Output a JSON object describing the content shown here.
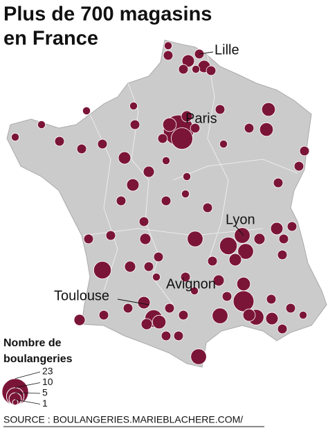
{
  "title": [
    "Plus de 700 magasins",
    "en France"
  ],
  "cities": [
    "Lille",
    "Paris",
    "Lyon",
    "Avignon",
    "Toulouse"
  ],
  "legend": {
    "title": [
      "Nombre de",
      "boulangeries"
    ],
    "values": [
      23,
      10,
      5,
      1
    ]
  },
  "bubbles": [
    3,
    5,
    5,
    3,
    2,
    2,
    3,
    3,
    30,
    15,
    6,
    4,
    3,
    3,
    6,
    6,
    3,
    3,
    2,
    3,
    3,
    3,
    5,
    5,
    3,
    3,
    3,
    2,
    2,
    2,
    2,
    3,
    4,
    2,
    2,
    3,
    2,
    3,
    3,
    4,
    3,
    3,
    3,
    10,
    4,
    3,
    3,
    5,
    10,
    6,
    4,
    3,
    3,
    3,
    8,
    3,
    4,
    3,
    8,
    4,
    8,
    3,
    8,
    10,
    8,
    5,
    4,
    5,
    3,
    3,
    3,
    6,
    14,
    8,
    5,
    5,
    3,
    3,
    2,
    3,
    3,
    3,
    2,
    2,
    3
  ],
  "source": "SOURCE : BOULANGERIES.MARIEBLACHERE.COM/"
}
